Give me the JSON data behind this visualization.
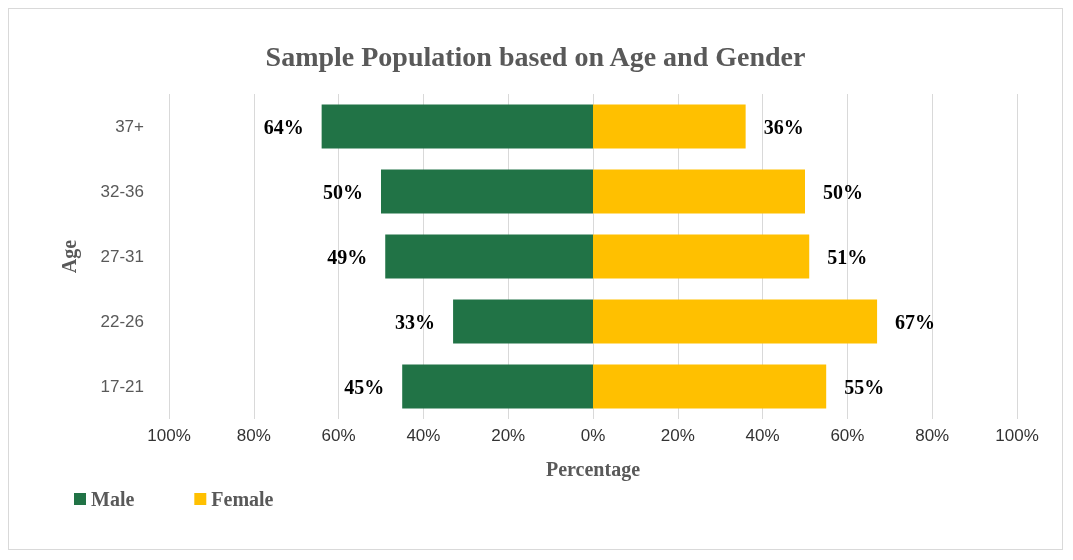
{
  "chart_data": {
    "type": "bar",
    "orientation": "horizontal",
    "title": "Sample Population based on Age and Gender",
    "xlabel": "Percentage",
    "ylabel": "Age",
    "categories": [
      "37+",
      "32-36",
      "27-31",
      "22-26",
      "17-21"
    ],
    "series": [
      {
        "name": "Male",
        "color": "#217346",
        "values": [
          64,
          50,
          49,
          33,
          45
        ],
        "base": [
          -64,
          -50,
          -49,
          -33,
          -45
        ],
        "value_labels": [
          "64%",
          "50%",
          "49%",
          "33%",
          "45%"
        ]
      },
      {
        "name": "Female",
        "color": "#ffc000",
        "values": [
          36,
          50,
          51,
          67,
          55
        ],
        "value_labels": [
          "36%",
          "50%",
          "51%",
          "67%",
          "55%"
        ]
      }
    ],
    "xlim": [
      -100,
      100
    ],
    "xticks": [
      {
        "value": -100,
        "label": "100%"
      },
      {
        "value": -80,
        "label": "80%"
      },
      {
        "value": -60,
        "label": "60%"
      },
      {
        "value": -40,
        "label": "40%"
      },
      {
        "value": -20,
        "label": "20%"
      },
      {
        "value": 0,
        "label": "0%"
      },
      {
        "value": 20,
        "label": "20%"
      },
      {
        "value": 40,
        "label": "40%"
      },
      {
        "value": 60,
        "label": "60%"
      },
      {
        "value": 80,
        "label": "80%"
      },
      {
        "value": 100,
        "label": "100%"
      }
    ],
    "grid": "x",
    "legend": "bottom left"
  }
}
